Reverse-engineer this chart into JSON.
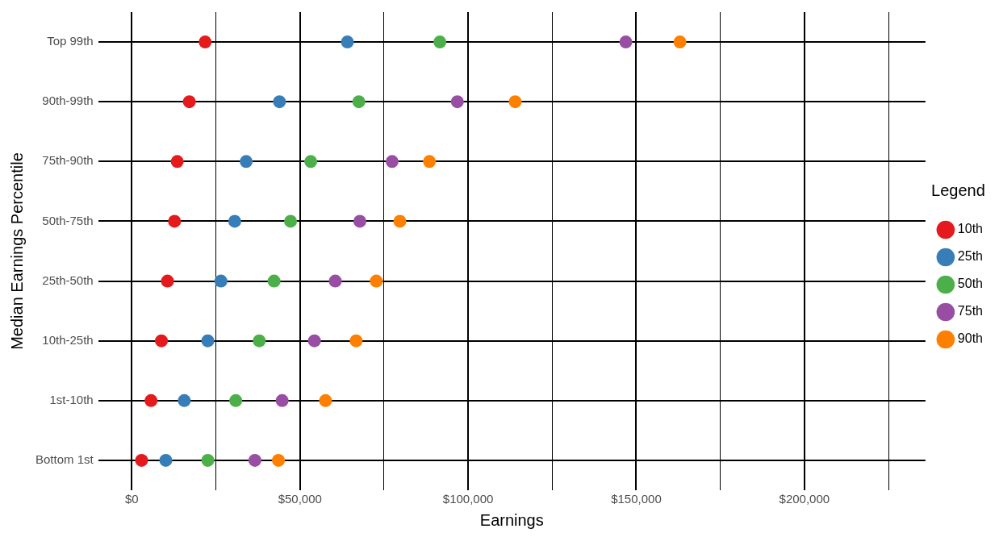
{
  "chart_data": {
    "type": "scatter",
    "xlabel": "Earnings",
    "ylabel": "Median Earnings Percentile",
    "legend_title": "Legend",
    "categories": [
      "Top 99th",
      "90th-99th",
      "75th-90th",
      "50th-75th",
      "25th-50th",
      "10th-25th",
      "1st-10th",
      "Bottom 1st"
    ],
    "orientation": "horizontal",
    "series": [
      {
        "name": "10th",
        "color": "#e41a1c",
        "values": [
          21800,
          17100,
          13500,
          12700,
          10600,
          8800,
          5700,
          2900
        ]
      },
      {
        "name": "25th",
        "color": "#377eb8",
        "values": [
          64100,
          43900,
          34000,
          30600,
          26500,
          22600,
          15600,
          10100
        ]
      },
      {
        "name": "50th",
        "color": "#4daf4a",
        "values": [
          91600,
          67500,
          53200,
          47200,
          42300,
          37900,
          30900,
          22600
        ]
      },
      {
        "name": "75th",
        "color": "#984ea3",
        "values": [
          146900,
          96800,
          77400,
          67800,
          60500,
          54300,
          44700,
          36600
        ]
      },
      {
        "name": "90th",
        "color": "#ff7f00",
        "values": [
          163000,
          114000,
          88500,
          79700,
          72700,
          66700,
          57600,
          43600
        ]
      }
    ],
    "xlim": [
      -10000,
      236000
    ],
    "xticks": [
      {
        "value": 0,
        "label": "$0"
      },
      {
        "value": 25000,
        "label": null
      },
      {
        "value": 50000,
        "label": "$50,000"
      },
      {
        "value": 75000,
        "label": null
      },
      {
        "value": 100000,
        "label": "$100,000"
      },
      {
        "value": 125000,
        "label": null
      },
      {
        "value": 150000,
        "label": "$150,000"
      },
      {
        "value": 175000,
        "label": null
      },
      {
        "value": 200000,
        "label": "$200,000"
      },
      {
        "value": 225000,
        "label": null
      }
    ],
    "grid": true,
    "legend": "right",
    "marker": "circle"
  }
}
